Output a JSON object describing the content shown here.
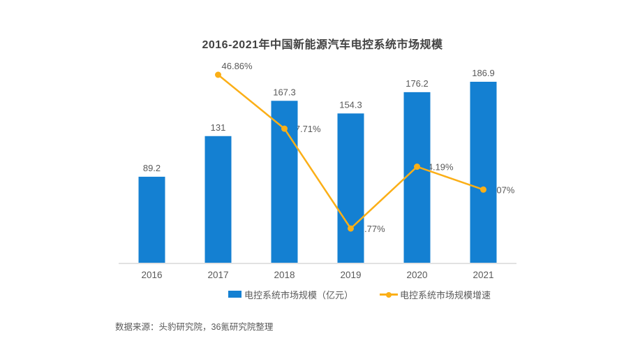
{
  "title": "2016-2021年中国新能源汽车电控系统市场规模",
  "source_note": "数据来源：头豹研究院，36氪研究院整理",
  "legend": {
    "bar_label": "电控系统市场规模（亿元）",
    "line_label": "电控系统市场规模增速"
  },
  "colors": {
    "bar": "#1480d2",
    "line": "#fbaf17",
    "text": "#595959",
    "title_text": "#424242",
    "axis_line": "#e2e2e2",
    "background": "#ffffff"
  },
  "chart_data": {
    "type": "combo-bar-line",
    "title": "2016-2021年中国新能源汽车电控系统市场规模",
    "categories": [
      "2016",
      "2017",
      "2018",
      "2019",
      "2020",
      "2021"
    ],
    "series": [
      {
        "name": "电控系统市场规模（亿元）",
        "type": "bar",
        "unit": "亿元",
        "color": "#1480d2",
        "values": [
          89.2,
          131,
          167.3,
          154.3,
          176.2,
          186.9
        ],
        "labels": [
          "89.2",
          "131",
          "167.3",
          "154.3",
          "176.2",
          "186.9"
        ]
      },
      {
        "name": "电控系统市场规模增速",
        "type": "line",
        "unit": "%",
        "color": "#fbaf17",
        "values": [
          null,
          46.86,
          27.71,
          -7.77,
          14.19,
          6.07
        ],
        "labels": [
          null,
          "46.86%",
          "27.71%",
          "-7.77%",
          "14.19%",
          "6.07%"
        ]
      }
    ],
    "xlabel": "",
    "ylabel": "",
    "y_axes_visible": false,
    "grid": false,
    "data_labels_visible": true,
    "legend_position": "bottom",
    "bar_axis_range": [
      0,
      200
    ],
    "line_axis_range_pct": [
      -20,
      50
    ]
  }
}
